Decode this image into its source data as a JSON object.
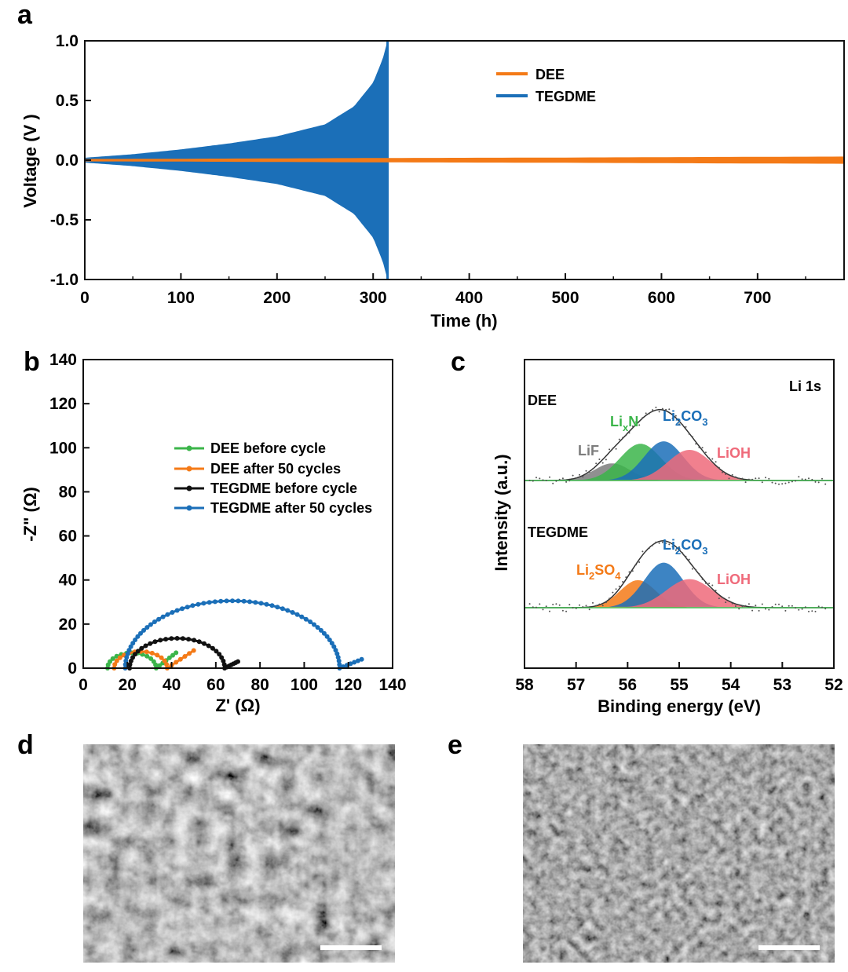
{
  "panels": {
    "a": "a",
    "b": "b",
    "c": "c",
    "d": "d",
    "e": "e"
  },
  "colors": {
    "dee": "#f47a17",
    "tegdme": "#1b6fb8",
    "black": "#111111",
    "green": "#3bb54a",
    "gray": "#7d7d7d",
    "pink": "#ef6a7a",
    "li2so4": "#f47a17"
  },
  "chart_data": [
    {
      "panel": "a",
      "type": "line",
      "title": "",
      "xlabel": "Time (h)",
      "ylabel": "Voltage (V )",
      "xlim": [
        0,
        790
      ],
      "ylim": [
        -1.0,
        1.0
      ],
      "xticks": [
        "0",
        "100",
        "200",
        "300",
        "400",
        "500",
        "600",
        "700"
      ],
      "xtick_values": [
        0,
        100,
        200,
        300,
        400,
        500,
        600,
        700
      ],
      "yticks": [
        "1.0",
        "0.5",
        "0.0",
        "-0.5",
        "-1.0"
      ],
      "ytick_values": [
        1.0,
        0.5,
        0.0,
        -0.5,
        -1.0
      ],
      "legend_position": "top-right",
      "series": [
        {
          "name": "DEE",
          "envelope_time_h": [
            0,
            100,
            200,
            300,
            400,
            500,
            600,
            700,
            790
          ],
          "envelope_voltage_v": [
            0.01,
            0.012,
            0.015,
            0.018,
            0.02,
            0.022,
            0.025,
            0.028,
            0.03
          ]
        },
        {
          "name": "TEGDME",
          "envelope_time_h": [
            0,
            50,
            100,
            150,
            200,
            250,
            280,
            300,
            310,
            315
          ],
          "envelope_voltage_v": [
            0.02,
            0.05,
            0.09,
            0.14,
            0.2,
            0.3,
            0.45,
            0.65,
            0.85,
            1.0
          ]
        }
      ]
    },
    {
      "panel": "b",
      "type": "scatter",
      "title": "",
      "xlabel": "Z' (Ω)",
      "ylabel": "-Z\" (Ω)",
      "xlim": [
        0,
        140
      ],
      "ylim": [
        0,
        140
      ],
      "xticks": [
        "0",
        "20",
        "40",
        "60",
        "80",
        "100",
        "120",
        "140"
      ],
      "xtick_values": [
        0,
        20,
        40,
        60,
        80,
        100,
        120,
        140
      ],
      "yticks": [
        "0",
        "20",
        "40",
        "60",
        "80",
        "100",
        "120",
        "140"
      ],
      "ytick_values": [
        0,
        20,
        40,
        60,
        80,
        100,
        120,
        140
      ],
      "legend_position": "center-left",
      "series": [
        {
          "name": "DEE before cycle",
          "arc_start": 11,
          "arc_end": 33,
          "tail_end": [
            42,
            7
          ]
        },
        {
          "name": "DEE after 50 cycles",
          "arc_start": 14,
          "arc_end": 38,
          "tail_end": [
            50,
            8
          ]
        },
        {
          "name": "TEGDME before cycle",
          "arc_start": 21,
          "arc_end": 64,
          "tail_end": [
            70,
            3
          ]
        },
        {
          "name": "TEGDME after 50 cycles",
          "arc_start": 19,
          "arc_end": 116,
          "tail_end": [
            126,
            4
          ]
        }
      ]
    },
    {
      "panel": "c",
      "type": "line",
      "title": "Li 1s",
      "xlabel": "Binding energy (eV)",
      "ylabel": "Intensity (a.u.)",
      "xlim": [
        58,
        52
      ],
      "xticks": [
        "58",
        "57",
        "56",
        "55",
        "54",
        "53",
        "52"
      ],
      "xtick_values": [
        58,
        57,
        56,
        55,
        54,
        53,
        52
      ],
      "spectra": [
        {
          "name": "DEE",
          "peaks": [
            {
              "label": "LiF",
              "sub": "",
              "label2": "",
              "sub2": "",
              "center_ev": 56.3,
              "height": 0.28,
              "width": 0.35
            },
            {
              "label": "Li",
              "sub": "x",
              "label2": "N",
              "sub2": "",
              "center_ev": 55.75,
              "height": 0.6,
              "width": 0.4
            },
            {
              "label": "Li",
              "sub": "2",
              "label2": "CO",
              "sub2": "3",
              "center_ev": 55.3,
              "height": 0.64,
              "width": 0.38
            },
            {
              "label": "LiOH",
              "sub": "",
              "label2": "",
              "sub2": "",
              "center_ev": 54.8,
              "height": 0.5,
              "width": 0.42
            }
          ]
        },
        {
          "name": "TEGDME",
          "peaks": [
            {
              "label": "Li",
              "sub": "2",
              "label2": "SO",
              "sub2": "4",
              "center_ev": 55.8,
              "height": 0.5,
              "width": 0.35
            },
            {
              "label": "Li",
              "sub": "2",
              "label2": "CO",
              "sub2": "3",
              "center_ev": 55.3,
              "height": 0.82,
              "width": 0.38
            },
            {
              "label": "LiOH",
              "sub": "",
              "label2": "",
              "sub2": "",
              "center_ev": 54.8,
              "height": 0.52,
              "width": 0.45
            }
          ]
        }
      ]
    }
  ]
}
